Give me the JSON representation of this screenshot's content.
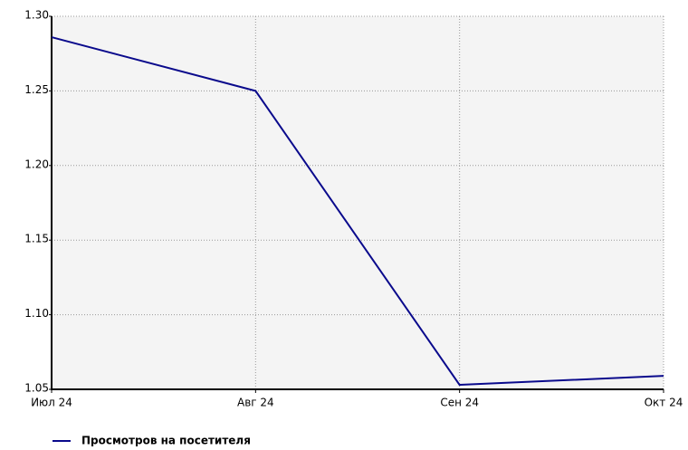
{
  "chart_data": {
    "type": "line",
    "categories": [
      "Июл 24",
      "Авг 24",
      "Сен 24",
      "Окт 24"
    ],
    "series": [
      {
        "name": "Просмотров на посетителя",
        "color": "#0a0a8c",
        "values": [
          1.286,
          1.25,
          1.053,
          1.059
        ]
      }
    ],
    "ylim": [
      1.05,
      1.3
    ],
    "yticks": [
      1.05,
      {
        "value": 1.1,
        "label": "1.10"
      },
      1.15,
      {
        "value": 1.2,
        "label": "1.20"
      },
      1.25,
      {
        "value": 1.3,
        "label": "1.30"
      }
    ],
    "grid": true,
    "legend": "bottom"
  }
}
